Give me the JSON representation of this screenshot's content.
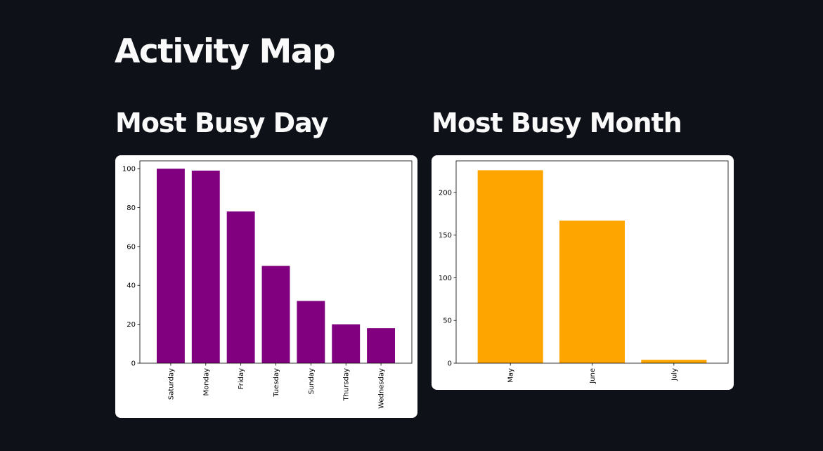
{
  "page": {
    "title": "Activity Map"
  },
  "sections": [
    {
      "title": "Most Busy Day"
    },
    {
      "title": "Most Busy Month"
    }
  ],
  "chart_data": [
    {
      "type": "bar",
      "categories": [
        "Saturday",
        "Monday",
        "Friday",
        "Tuesday",
        "Sunday",
        "Thursday",
        "Wednesday"
      ],
      "values": [
        100,
        99,
        78,
        50,
        32,
        20,
        18
      ],
      "title": "",
      "xlabel": "",
      "ylabel": "",
      "ylim": [
        0,
        104
      ],
      "yticks": [
        0,
        20,
        40,
        60,
        80,
        100
      ],
      "bar_color": "#800080",
      "grid": false,
      "xtick_rotation": 90
    },
    {
      "type": "bar",
      "categories": [
        "May",
        "June",
        "July"
      ],
      "values": [
        226,
        167,
        4
      ],
      "title": "",
      "xlabel": "",
      "ylabel": "",
      "ylim": [
        0,
        237
      ],
      "yticks": [
        0,
        50,
        100,
        150,
        200
      ],
      "bar_color": "#FFA500",
      "grid": false,
      "xtick_rotation": 90
    }
  ]
}
